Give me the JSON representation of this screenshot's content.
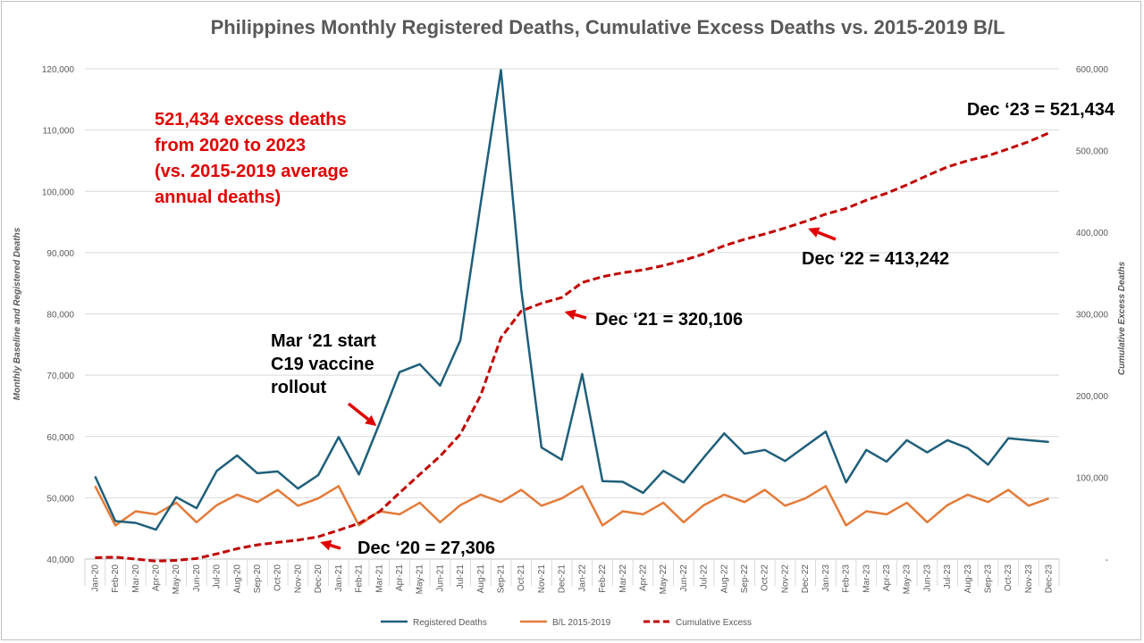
{
  "chart_data": {
    "type": "line",
    "title": "Philippines Monthly Registered Deaths, Cumulative Excess Deaths vs. 2015-2019 B/L",
    "ylabel": "Monthly Baseline and Registered Deaths",
    "y2label": "Cumulative Excess Deaths",
    "ylim": [
      40000,
      120000
    ],
    "y2lim": [
      0,
      600000
    ],
    "yticks": [
      "40,000",
      "50,000",
      "60,000",
      "70,000",
      "80,000",
      "90,000",
      "100,000",
      "110,000",
      "120,000"
    ],
    "y2ticks": [
      "-",
      "100,000",
      "200,000",
      "300,000",
      "400,000",
      "500,000",
      "600,000"
    ],
    "grid": true,
    "legend_position": "bottom",
    "categories": [
      "Jan-20",
      "Feb-20",
      "Mar-20",
      "Apr-20",
      "May-20",
      "Jun-20",
      "Jul-20",
      "Aug-20",
      "Sep-20",
      "Oct-20",
      "Nov-20",
      "Dec-20",
      "Jan-21",
      "Feb-21",
      "Mar-21",
      "Apr-21",
      "May-21",
      "Jun-21",
      "Jul-21",
      "Aug-21",
      "Sep-21",
      "Oct-21",
      "Nov-21",
      "Dec-21",
      "Jan-22",
      "Feb-22",
      "Mar-22",
      "Apr-22",
      "May-22",
      "Jun-22",
      "Jul-22",
      "Aug-22",
      "Sep-22",
      "Oct-22",
      "Nov-22",
      "Dec-22",
      "Jan-23",
      "Feb-23",
      "Mar-23",
      "Apr-23",
      "May-23",
      "Jun-23",
      "Jul-23",
      "Aug-23",
      "Sep-23",
      "Oct-23",
      "Nov-23",
      "Dec-23"
    ],
    "series": [
      {
        "name": "Registered Deaths",
        "axis": "left",
        "color": "#1f5f7a",
        "style": "solid",
        "values": [
          53500,
          46200,
          45900,
          44800,
          50100,
          48300,
          54400,
          56900,
          54000,
          54300,
          51500,
          53700,
          59900,
          53800,
          62000,
          70500,
          71800,
          68300,
          75700,
          98000,
          119800,
          84000,
          58200,
          56200,
          70200,
          52700,
          52600,
          50800,
          54400,
          52500,
          56600,
          60500,
          57200,
          57800,
          56000,
          58400,
          60800,
          52500,
          57800,
          55900,
          59400,
          57400,
          59400,
          58100,
          55400,
          59700,
          59400,
          59100
        ]
      },
      {
        "name": "B/L 2015-2019",
        "axis": "left",
        "color": "#e27b3a",
        "style": "solid",
        "values": [
          51900,
          45500,
          47800,
          47300,
          49200,
          46000,
          48800,
          50500,
          49300,
          51300,
          48700,
          49900,
          51900,
          45500,
          47800,
          47300,
          49200,
          46000,
          48800,
          50500,
          49300,
          51300,
          48700,
          49900,
          51900,
          45500,
          47800,
          47300,
          49200,
          46000,
          48800,
          50500,
          49300,
          51300,
          48700,
          49900,
          51900,
          45500,
          47800,
          47300,
          49200,
          46000,
          48800,
          50500,
          49300,
          51300,
          48700,
          49900
        ]
      },
      {
        "name": "Cumulative Excess",
        "axis": "right",
        "color": "#c00000",
        "style": "dashed",
        "values": [
          1600,
          2300,
          0,
          -2500,
          -1600,
          700,
          6300,
          12700,
          17400,
          20400,
          23200,
          27306,
          35300,
          43600,
          57800,
          81000,
          103600,
          125900,
          152800,
          200300,
          270800,
          303500,
          313000,
          320106,
          338400,
          345600,
          350400,
          353900,
          359100,
          365600,
          373400,
          383400,
          391300,
          397800,
          405100,
          413242,
          422100,
          429100,
          439100,
          447700,
          457900,
          469300,
          479900,
          487500,
          493600,
          502000,
          510700,
          521434
        ]
      }
    ],
    "annotations": [
      {
        "text_lines": [
          "521,434 excess deaths",
          "from 2020 to 2023",
          "(vs. 2015-2019 average",
          "annual deaths)"
        ],
        "color": "#e00000"
      },
      {
        "text_lines": [
          "Mar ‘21 start",
          "C19 vaccine",
          "rollout"
        ],
        "color": "#000000",
        "arrow_to_month": "Mar-21"
      },
      {
        "text_lines": [
          "Dec ‘20 = 27,306"
        ],
        "color": "#000000",
        "arrow_to_month": "Dec-20"
      },
      {
        "text_lines": [
          "Dec ‘21 = 320,106"
        ],
        "color": "#000000",
        "arrow_to_month": "Dec-21"
      },
      {
        "text_lines": [
          "Dec ‘22 = 413,242"
        ],
        "color": "#000000",
        "arrow_to_month": "Dec-22"
      },
      {
        "text_lines": [
          "Dec ‘23 = 521,434"
        ],
        "color": "#000000"
      }
    ],
    "arrow_color": "#e00000"
  }
}
